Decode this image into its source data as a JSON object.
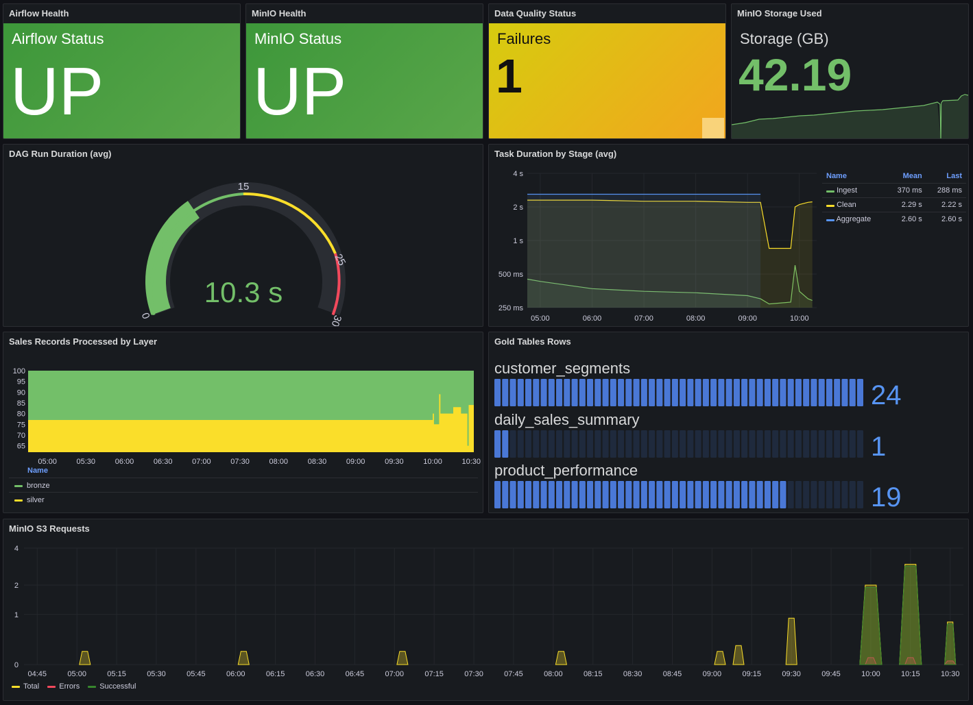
{
  "panels": {
    "airflow": {
      "title": "Airflow Health",
      "label": "Airflow Status",
      "value": "UP"
    },
    "minio": {
      "title": "MinIO Health",
      "label": "MinIO Status",
      "value": "UP"
    },
    "dq": {
      "title": "Data Quality Status",
      "label": "Failures",
      "value": "1"
    },
    "storage": {
      "title": "MinIO Storage Used",
      "label": "Storage (GB)",
      "value": "42.19"
    },
    "dag": {
      "title": "DAG Run Duration (avg)",
      "value": "10.3 s",
      "min_label": "0",
      "max_label": "30",
      "threshold_labels": [
        "15",
        "25"
      ],
      "fill_fraction": 0.343
    },
    "task": {
      "title": "Task Duration by Stage (avg)",
      "legend": {
        "headers": [
          "Name",
          "Mean",
          "Last"
        ],
        "rows": [
          {
            "name": "Ingest",
            "mean": "370 ms",
            "last": "288 ms",
            "color": "#73bf69"
          },
          {
            "name": "Clean",
            "mean": "2.29 s",
            "last": "2.22 s",
            "color": "#fade2a"
          },
          {
            "name": "Aggregate",
            "mean": "2.60 s",
            "last": "2.60 s",
            "color": "#5794f2"
          }
        ]
      }
    },
    "sales": {
      "title": "Sales Records Processed by Layer",
      "legend_header": "Name"
    },
    "gold": {
      "title": "Gold Tables Rows",
      "rows": [
        {
          "label": "customer_segments",
          "value": "24",
          "fraction": 1.0
        },
        {
          "label": "daily_sales_summary",
          "value": "1",
          "fraction": 0.04
        },
        {
          "label": "product_performance",
          "value": "19",
          "fraction": 0.79
        }
      ]
    },
    "s3": {
      "title": "MinIO S3 Requests"
    }
  },
  "chart_data": [
    {
      "type": "line",
      "title": "Task Duration by Stage (avg)",
      "y_ticks": [
        "250 ms",
        "500 ms",
        "1 s",
        "2 s",
        "4 s"
      ],
      "x_ticks": [
        "05:00",
        "06:00",
        "07:00",
        "08:00",
        "09:00",
        "10:00"
      ],
      "y_scale": "log",
      "series": [
        {
          "name": "Ingest",
          "color": "#73bf69",
          "x": [
            "04:45",
            "05:00",
            "06:00",
            "07:00",
            "08:00",
            "09:00",
            "09:15",
            "09:25",
            "09:50",
            "09:55",
            "10:00",
            "10:10",
            "10:15"
          ],
          "y": [
            0.45,
            0.43,
            0.37,
            0.35,
            0.34,
            0.32,
            0.3,
            0.27,
            0.28,
            0.6,
            0.35,
            0.3,
            0.29
          ]
        },
        {
          "name": "Clean",
          "color": "#fade2a",
          "x": [
            "04:45",
            "05:00",
            "06:00",
            "07:00",
            "08:00",
            "09:00",
            "09:15",
            "09:25",
            "09:50",
            "09:55",
            "10:00",
            "10:10",
            "10:15"
          ],
          "y": [
            2.3,
            2.3,
            2.3,
            2.25,
            2.25,
            2.2,
            2.2,
            0.85,
            0.85,
            2.0,
            2.1,
            2.2,
            2.22
          ]
        },
        {
          "name": "Aggregate",
          "color": "#5794f2",
          "x": [
            "04:45",
            "05:00",
            "06:00",
            "07:00",
            "08:00",
            "09:00",
            "09:15"
          ],
          "y": [
            2.6,
            2.6,
            2.6,
            2.6,
            2.6,
            2.6,
            2.6
          ]
        }
      ]
    },
    {
      "type": "area",
      "title": "Sales Records Processed by Layer",
      "x_ticks": [
        "05:00",
        "05:30",
        "06:00",
        "06:30",
        "07:00",
        "07:30",
        "08:00",
        "08:30",
        "09:00",
        "09:30",
        "10:00",
        "10:30"
      ],
      "y_ticks": [
        65,
        70,
        75,
        80,
        85,
        90,
        95,
        100
      ],
      "ylim": [
        62,
        100
      ],
      "series": [
        {
          "name": "bronze",
          "color": "#73bf69",
          "x": [
            "04:45",
            "10:32"
          ],
          "y": [
            100,
            100
          ]
        },
        {
          "name": "silver",
          "color": "#fade2a",
          "x": [
            "04:45",
            "09:59",
            "10:00",
            "10:01",
            "10:05",
            "10:06",
            "10:07",
            "10:15",
            "10:16",
            "10:22",
            "10:23",
            "10:27",
            "10:28",
            "10:30",
            "10:32"
          ],
          "y": [
            77,
            77,
            80,
            75,
            89,
            80,
            80,
            80,
            83,
            80,
            80,
            65,
            84,
            84,
            84
          ]
        }
      ]
    },
    {
      "type": "area",
      "title": "MinIO S3 Requests",
      "y_ticks": [
        "0",
        "1",
        "2",
        "4"
      ],
      "x_ticks": [
        "04:45",
        "05:00",
        "05:15",
        "05:30",
        "05:45",
        "06:00",
        "06:15",
        "06:30",
        "06:45",
        "07:00",
        "07:15",
        "07:30",
        "07:45",
        "08:00",
        "08:15",
        "08:30",
        "08:45",
        "09:00",
        "09:15",
        "09:30",
        "09:45",
        "10:00",
        "10:15",
        "10:30"
      ],
      "series": [
        {
          "name": "Total",
          "color": "#fade2a",
          "x": [
            "05:03",
            "06:03",
            "07:03",
            "08:03",
            "09:03",
            "09:10",
            "09:30",
            "10:00",
            "10:15",
            "10:30"
          ],
          "y": [
            0.2,
            0.2,
            0.2,
            0.2,
            0.2,
            0.3,
            0.9,
            2.0,
            3.0,
            0.8
          ]
        },
        {
          "name": "Errors",
          "color": "#f2495c",
          "x": [
            "10:00",
            "10:15",
            "10:30"
          ],
          "y": [
            0.1,
            0.1,
            0.05
          ]
        },
        {
          "name": "Successful",
          "color": "#37872d",
          "x": [
            "10:00",
            "10:15",
            "10:30"
          ],
          "y": [
            1.9,
            2.9,
            0.75
          ]
        }
      ]
    }
  ]
}
